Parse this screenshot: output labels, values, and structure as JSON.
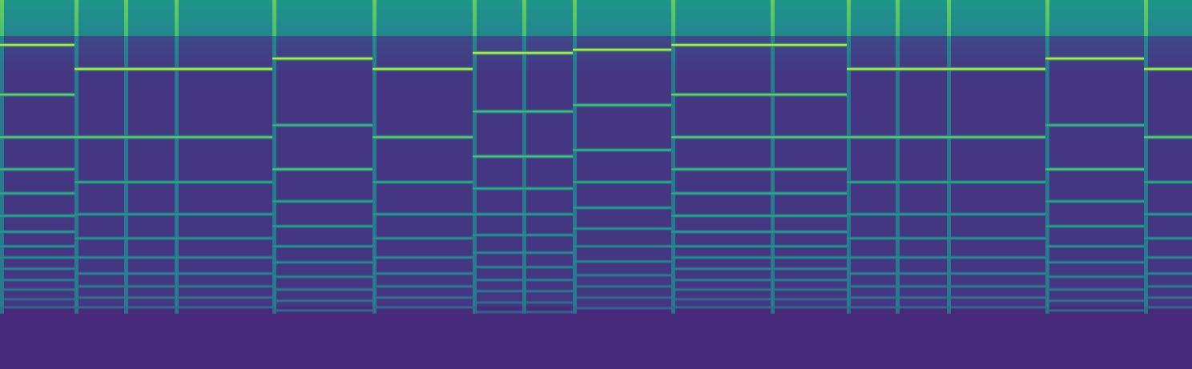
{
  "chart_data": {
    "type": "heatmap",
    "tick_labels": false,
    "xlim": [
      0,
      1488
    ],
    "ylim": [
      0,
      461
    ],
    "zlim": [
      0,
      1
    ],
    "segments": [
      {
        "start": 0,
        "end": 93,
        "lines": [
          404,
          342,
          289,
          249,
          219,
          191,
          171,
          153,
          139,
          125,
          111,
          99,
          87,
          77
        ],
        "levels": [
          1.0,
          0.85,
          0.8,
          0.74,
          0.68,
          0.64,
          0.6,
          0.56,
          0.52,
          0.48,
          0.45,
          0.42,
          0.38,
          0.35
        ]
      },
      {
        "start": 93,
        "end": 155,
        "lines": [
          374,
          289,
          233,
          193,
          163,
          139,
          119,
          103,
          89,
          77
        ],
        "levels": [
          1.0,
          0.82,
          0.66,
          0.6,
          0.56,
          0.52,
          0.48,
          0.44,
          0.4,
          0.36
        ]
      },
      {
        "start": 155,
        "end": 218,
        "lines": [
          374,
          289,
          233,
          193,
          163,
          139,
          119,
          103,
          89,
          77
        ],
        "levels": [
          1.0,
          0.82,
          0.66,
          0.6,
          0.56,
          0.52,
          0.48,
          0.44,
          0.4,
          0.36
        ]
      },
      {
        "start": 218,
        "end": 340,
        "lines": [
          374,
          289,
          233,
          193,
          163,
          139,
          119,
          103,
          89,
          77
        ],
        "levels": [
          1.0,
          0.82,
          0.66,
          0.6,
          0.56,
          0.52,
          0.48,
          0.44,
          0.4,
          0.36
        ]
      },
      {
        "start": 340,
        "end": 465,
        "lines": [
          387,
          304,
          249,
          209,
          178,
          153,
          133,
          115,
          99,
          85,
          73
        ],
        "levels": [
          1.0,
          0.72,
          0.78,
          0.64,
          0.62,
          0.56,
          0.52,
          0.48,
          0.44,
          0.4,
          0.36
        ]
      },
      {
        "start": 465,
        "end": 590,
        "lines": [
          374,
          289,
          233,
          193,
          163,
          139,
          119,
          103,
          89,
          77
        ],
        "levels": [
          1.0,
          0.82,
          0.66,
          0.6,
          0.56,
          0.52,
          0.48,
          0.44,
          0.4,
          0.36
        ]
      },
      {
        "start": 590,
        "end": 652,
        "lines": [
          394,
          321,
          265,
          225,
          193,
          167,
          145,
          127,
          111,
          97,
          83,
          71
        ],
        "levels": [
          1.0,
          0.74,
          0.76,
          0.66,
          0.6,
          0.56,
          0.52,
          0.48,
          0.45,
          0.42,
          0.38,
          0.34
        ]
      },
      {
        "start": 652,
        "end": 715,
        "lines": [
          394,
          321,
          265,
          225,
          193,
          167,
          145,
          127,
          111,
          97,
          83,
          71
        ],
        "levels": [
          1.0,
          0.74,
          0.76,
          0.66,
          0.6,
          0.56,
          0.52,
          0.48,
          0.45,
          0.42,
          0.38,
          0.34
        ]
      },
      {
        "start": 715,
        "end": 838,
        "lines": [
          398,
          329,
          273,
          233,
          201,
          175,
          153,
          134,
          117,
          103,
          89,
          76
        ],
        "levels": [
          1.0,
          0.76,
          0.7,
          0.66,
          0.6,
          0.56,
          0.52,
          0.48,
          0.45,
          0.42,
          0.38,
          0.34
        ]
      },
      {
        "start": 838,
        "end": 962,
        "lines": [
          404,
          342,
          289,
          249,
          219,
          191,
          171,
          153,
          139,
          125,
          111,
          99,
          87,
          77
        ],
        "levels": [
          1.0,
          0.85,
          0.8,
          0.74,
          0.68,
          0.64,
          0.6,
          0.56,
          0.52,
          0.48,
          0.45,
          0.42,
          0.38,
          0.35
        ]
      },
      {
        "start": 962,
        "end": 1057,
        "lines": [
          404,
          342,
          289,
          249,
          219,
          191,
          171,
          153,
          139,
          125,
          111,
          99,
          87,
          77
        ],
        "levels": [
          1.0,
          0.85,
          0.8,
          0.74,
          0.68,
          0.64,
          0.6,
          0.56,
          0.52,
          0.48,
          0.45,
          0.42,
          0.38,
          0.35
        ]
      },
      {
        "start": 1057,
        "end": 1118,
        "lines": [
          374,
          289,
          233,
          193,
          163,
          139,
          119,
          103,
          89,
          77
        ],
        "levels": [
          1.0,
          0.82,
          0.66,
          0.6,
          0.56,
          0.52,
          0.48,
          0.44,
          0.4,
          0.36
        ]
      },
      {
        "start": 1118,
        "end": 1182,
        "lines": [
          374,
          289,
          233,
          193,
          163,
          139,
          119,
          103,
          89,
          77
        ],
        "levels": [
          1.0,
          0.82,
          0.66,
          0.6,
          0.56,
          0.52,
          0.48,
          0.44,
          0.4,
          0.36
        ]
      },
      {
        "start": 1182,
        "end": 1305,
        "lines": [
          374,
          289,
          233,
          193,
          163,
          139,
          119,
          103,
          89,
          77
        ],
        "levels": [
          1.0,
          0.82,
          0.66,
          0.6,
          0.56,
          0.52,
          0.48,
          0.44,
          0.4,
          0.36
        ]
      },
      {
        "start": 1305,
        "end": 1428,
        "lines": [
          387,
          304,
          249,
          209,
          178,
          153,
          133,
          115,
          99,
          85,
          73
        ],
        "levels": [
          1.0,
          0.72,
          0.78,
          0.64,
          0.62,
          0.56,
          0.52,
          0.48,
          0.44,
          0.4,
          0.36
        ]
      },
      {
        "start": 1428,
        "end": 1488,
        "lines": [
          374,
          289,
          233,
          193,
          163,
          139,
          119,
          103,
          89,
          77
        ],
        "levels": [
          1.0,
          0.82,
          0.66,
          0.6,
          0.56,
          0.52,
          0.48,
          0.44,
          0.4,
          0.36
        ]
      }
    ]
  }
}
